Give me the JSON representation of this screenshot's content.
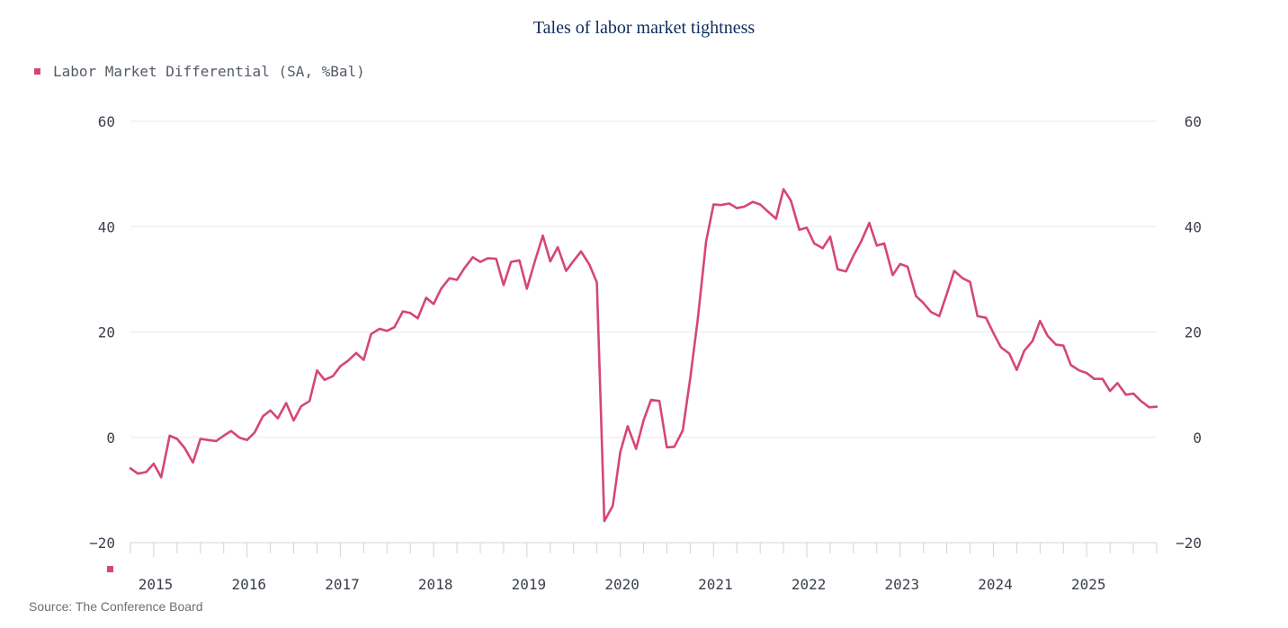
{
  "chart_data": {
    "type": "line",
    "title": "Tales of labor market tightness",
    "source": "Source: The Conference Board",
    "ylim": [
      -20,
      60
    ],
    "yticks": [
      "60",
      "40",
      "20",
      "0",
      "−20"
    ],
    "ytick_values": [
      60,
      40,
      20,
      0,
      -20
    ],
    "xticks": [
      "2015",
      "2016",
      "2017",
      "2018",
      "2019",
      "2020",
      "2021",
      "2022",
      "2023",
      "2024",
      "2025"
    ],
    "x_start": 2014.75,
    "x_end": 2025.75,
    "legend_position": "top-left",
    "colors": {
      "series": "#d6457a",
      "grid": "#e6e8ee",
      "title": "#0d2b5e"
    },
    "series": [
      {
        "name": "Labor Market Differential (SA, %Bal)",
        "x": [
          2014.75,
          2014.83,
          2014.92,
          2015.0,
          2015.08,
          2015.17,
          2015.25,
          2015.33,
          2015.42,
          2015.5,
          2015.58,
          2015.67,
          2015.75,
          2015.83,
          2015.92,
          2016.0,
          2016.08,
          2016.17,
          2016.25,
          2016.33,
          2016.42,
          2016.5,
          2016.58,
          2016.67,
          2016.75,
          2016.83,
          2016.92,
          2017.0,
          2017.08,
          2017.17,
          2017.25,
          2017.33,
          2017.42,
          2017.5,
          2017.58,
          2017.67,
          2017.75,
          2017.83,
          2017.92,
          2018.0,
          2018.08,
          2018.17,
          2018.25,
          2018.33,
          2018.42,
          2018.5,
          2018.58,
          2018.67,
          2018.75,
          2018.83,
          2018.92,
          2019.0,
          2019.08,
          2019.17,
          2019.25,
          2019.33,
          2019.42,
          2019.5,
          2019.58,
          2019.67,
          2019.75,
          2019.83,
          2019.92,
          2020.0,
          2020.08,
          2020.17,
          2020.25,
          2020.33,
          2020.42,
          2020.5,
          2020.58,
          2020.67,
          2020.75,
          2020.83,
          2020.92,
          2021.0,
          2021.08,
          2021.17,
          2021.25,
          2021.33,
          2021.42,
          2021.5,
          2021.58,
          2021.67,
          2021.75,
          2021.83,
          2021.92,
          2022.0,
          2022.08,
          2022.17,
          2022.25,
          2022.33,
          2022.42,
          2022.5,
          2022.58,
          2022.67,
          2022.75,
          2022.83,
          2022.92,
          2023.0,
          2023.08,
          2023.17,
          2023.25,
          2023.33,
          2023.42,
          2023.5,
          2023.58,
          2023.67,
          2023.75,
          2023.83,
          2023.92,
          2024.0,
          2024.08,
          2024.17,
          2024.25,
          2024.33,
          2024.42,
          2024.5,
          2024.58,
          2024.67,
          2024.75,
          2024.83,
          2024.92,
          2025.0,
          2025.08,
          2025.17,
          2025.25,
          2025.33,
          2025.42,
          2025.5,
          2025.58,
          2025.67,
          2025.75
        ],
        "values": [
          -5.9,
          -6.9,
          -6.6,
          -5.0,
          -7.6,
          0.3,
          -0.3,
          -2.0,
          -4.8,
          -0.3,
          -0.5,
          -0.7,
          0.3,
          1.2,
          -0.1,
          -0.5,
          0.9,
          4.0,
          5.1,
          3.6,
          6.5,
          3.2,
          5.9,
          6.9,
          12.7,
          10.9,
          11.6,
          13.5,
          14.5,
          16.0,
          14.7,
          19.6,
          20.6,
          20.2,
          20.9,
          23.9,
          23.6,
          22.6,
          26.5,
          25.3,
          28.2,
          30.2,
          29.9,
          32.1,
          34.2,
          33.3,
          34.0,
          33.9,
          28.9,
          33.3,
          33.6,
          28.2,
          33.1,
          38.3,
          33.4,
          36.1,
          31.6,
          33.5,
          35.3,
          32.8,
          29.4,
          -15.9,
          -13.0,
          -2.8,
          2.1,
          -2.2,
          3.2,
          7.1,
          6.9,
          -1.9,
          -1.8,
          1.3,
          11.2,
          22.3,
          37.1,
          44.2,
          44.1,
          44.4,
          43.5,
          43.8,
          44.7,
          44.2,
          42.9,
          41.5,
          47.1,
          44.9,
          39.4,
          39.8,
          36.8,
          35.9,
          38.1,
          31.9,
          31.5,
          34.5,
          37.1,
          40.7,
          36.4,
          36.8,
          30.8,
          32.9,
          32.4,
          26.8,
          25.5,
          23.8,
          23.0,
          27.2,
          31.6,
          30.2,
          29.5,
          23.0,
          22.7,
          19.8,
          17.1,
          15.9,
          12.8,
          16.4,
          18.3,
          22.1,
          19.3,
          17.6,
          17.4,
          13.7,
          12.7,
          12.2,
          11.1,
          11.1,
          8.8,
          10.3,
          8.1,
          8.3,
          6.9,
          5.7,
          5.8
        ]
      }
    ]
  }
}
